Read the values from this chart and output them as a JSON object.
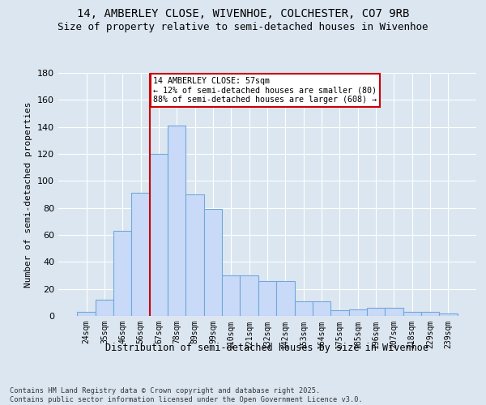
{
  "title1": "14, AMBERLEY CLOSE, WIVENHOE, COLCHESTER, CO7 9RB",
  "title2": "Size of property relative to semi-detached houses in Wivenhoe",
  "xlabel": "Distribution of semi-detached houses by size in Wivenhoe",
  "ylabel": "Number of semi-detached properties",
  "categories": [
    "24sqm",
    "35sqm",
    "46sqm",
    "56sqm",
    "67sqm",
    "78sqm",
    "89sqm",
    "99sqm",
    "110sqm",
    "121sqm",
    "132sqm",
    "142sqm",
    "153sqm",
    "164sqm",
    "175sqm",
    "185sqm",
    "196sqm",
    "207sqm",
    "218sqm",
    "229sqm",
    "239sqm"
  ],
  "values": [
    3,
    12,
    63,
    91,
    120,
    141,
    90,
    79,
    30,
    30,
    26,
    26,
    11,
    11,
    4,
    5,
    6,
    6,
    3,
    3,
    2
  ],
  "bar_color": "#c9daf8",
  "bar_edge_color": "#6fa8dc",
  "redline_index": 3.5,
  "annotation_text": "14 AMBERLEY CLOSE: 57sqm\n← 12% of semi-detached houses are smaller (80)\n88% of semi-detached houses are larger (608) →",
  "annotation_box_color": "#ffffff",
  "annotation_box_edge": "#cc0000",
  "redline_color": "#cc0000",
  "footnote1": "Contains HM Land Registry data © Crown copyright and database right 2025.",
  "footnote2": "Contains public sector information licensed under the Open Government Licence v3.0.",
  "bg_color": "#dce6f1",
  "plot_bg_color": "#dce6f1",
  "grid_color": "#ffffff",
  "ylim": [
    0,
    180
  ],
  "yticks": [
    0,
    20,
    40,
    60,
    80,
    100,
    120,
    140,
    160,
    180
  ],
  "title_fontsize": 10,
  "subtitle_fontsize": 9
}
